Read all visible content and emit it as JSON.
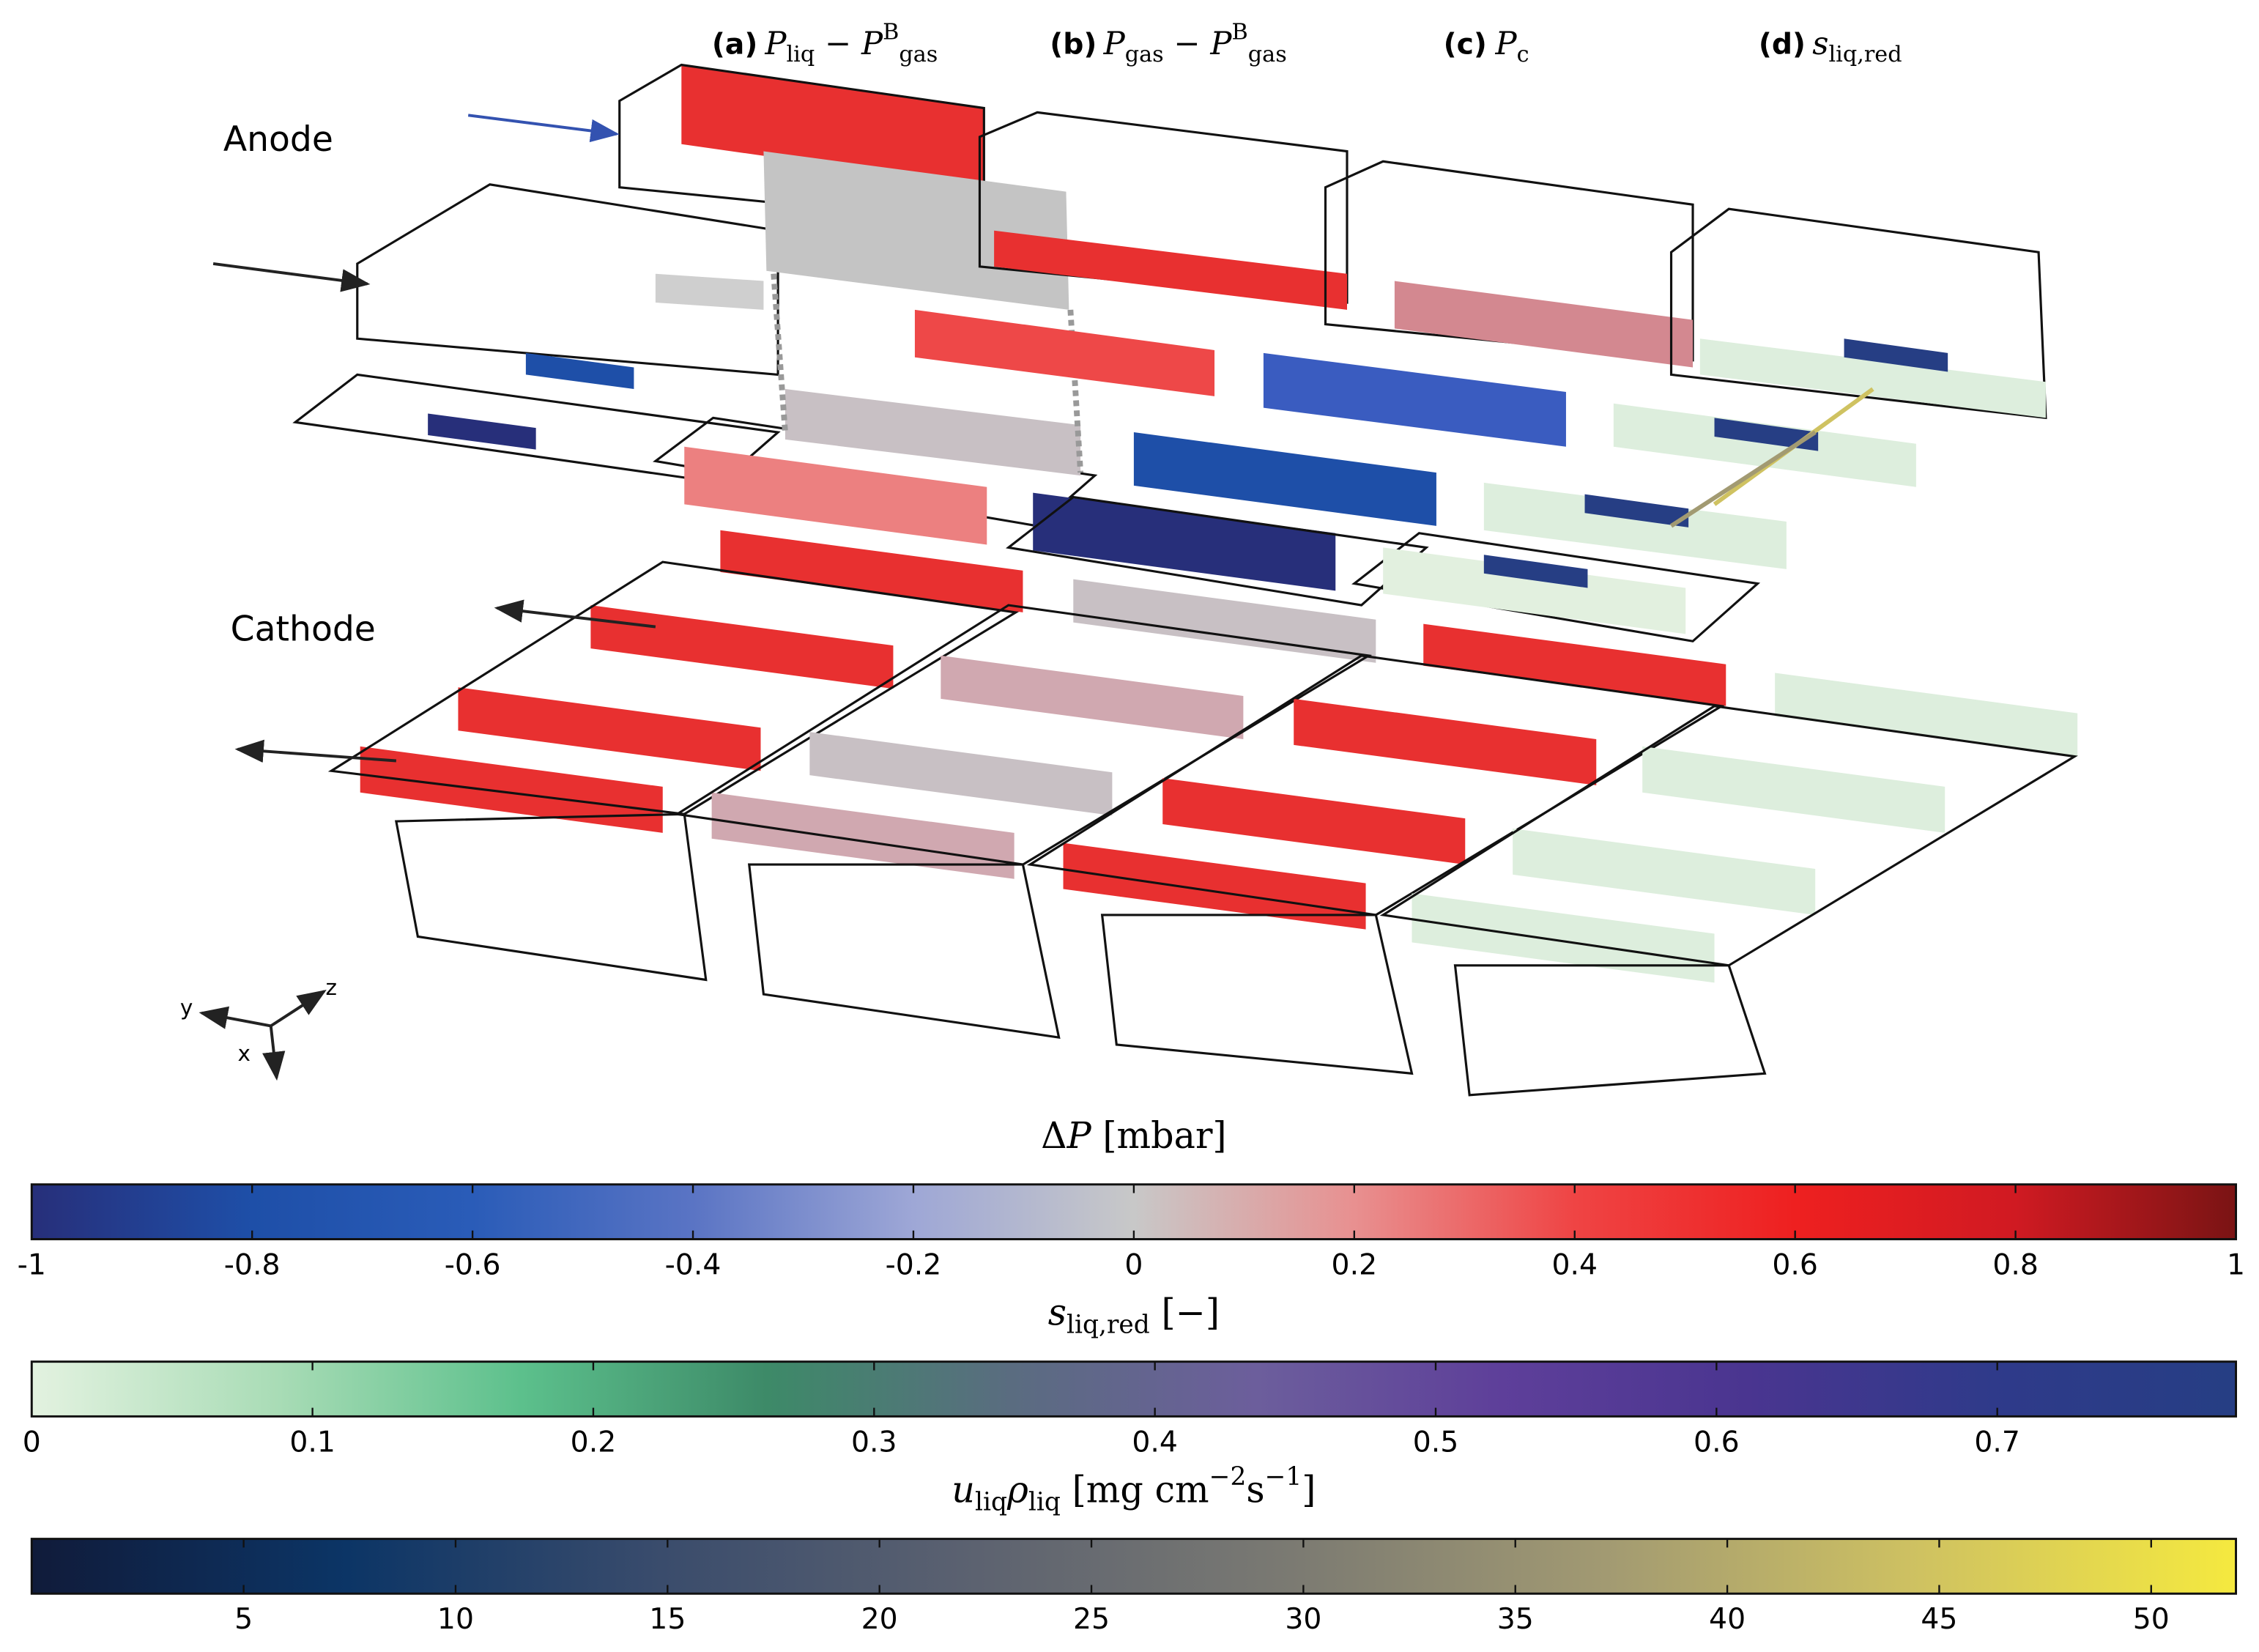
{
  "panels": [
    {
      "letter": "(a)",
      "expression": [
        {
          "t": "P",
          "s": "i"
        },
        {
          "t": "liq",
          "s": "sub"
        },
        {
          "t": " − ",
          "s": "r"
        },
        {
          "t": "P",
          "s": "i"
        },
        {
          "t": "B",
          "s": "sup"
        },
        {
          "t": "gas",
          "s": "sub"
        }
      ]
    },
    {
      "letter": "(b)",
      "expression": [
        {
          "t": "P",
          "s": "i"
        },
        {
          "t": "gas",
          "s": "sub"
        },
        {
          "t": " − ",
          "s": "r"
        },
        {
          "t": "P",
          "s": "i"
        },
        {
          "t": "B",
          "s": "sup"
        },
        {
          "t": "gas",
          "s": "sub"
        }
      ]
    },
    {
      "letter": "(c)",
      "expression": [
        {
          "t": "P",
          "s": "i"
        },
        {
          "t": "c",
          "s": "sub"
        }
      ]
    },
    {
      "letter": "(d)",
      "expression": [
        {
          "t": "s",
          "s": "i"
        },
        {
          "t": "liq,red",
          "s": "sub"
        }
      ]
    }
  ],
  "labels": {
    "anode": "Anode",
    "cathode": "Cathode",
    "axis_y": "y",
    "axis_z": "z",
    "axis_x": "x"
  },
  "colorbars": [
    {
      "title": [
        {
          "t": "Δ",
          "s": "r"
        },
        {
          "t": "P",
          "s": "i"
        },
        {
          "t": " [mbar]",
          "s": "r"
        }
      ],
      "lim": [
        -1,
        1
      ],
      "ticks": [
        -1,
        -0.8,
        -0.6,
        -0.4,
        -0.2,
        0,
        0.2,
        0.4,
        0.6,
        0.8,
        1
      ],
      "colors": [
        "#272f7a",
        "#1e4fa8",
        "#2a5cb8",
        "#5a74c4",
        "#9ea7d6",
        "#c8c8c8",
        "#e89090",
        "#ef4444",
        "#ee2020",
        "#d01a22",
        "#7a1414"
      ]
    },
    {
      "title": [
        {
          "t": "s",
          "s": "i"
        },
        {
          "t": "liq,red",
          "s": "sub"
        },
        {
          "t": " [−]",
          "s": "r"
        }
      ],
      "lim": [
        0,
        0.785
      ],
      "ticks": [
        0,
        0.1,
        0.2,
        0.3,
        0.4,
        0.5,
        0.6,
        0.7
      ],
      "colors": [
        "#e3f2e0",
        "#a9dcb6",
        "#5cc08c",
        "#3d8a68",
        "#5a6c80",
        "#6c5e9c",
        "#5e3f9a",
        "#4a3590",
        "#2f3a8a",
        "#263e84"
      ]
    },
    {
      "title": [
        {
          "t": "u",
          "s": "i"
        },
        {
          "t": "liq",
          "s": "sub"
        },
        {
          "t": "ρ",
          "s": "i"
        },
        {
          "t": "liq",
          "s": "sub"
        },
        {
          "t": " [mg cm",
          "s": "r"
        },
        {
          "t": "−2",
          "s": "sup"
        },
        {
          "t": "s",
          "s": "r"
        },
        {
          "t": "−1",
          "s": "sup"
        },
        {
          "t": "]",
          "s": "r"
        }
      ],
      "lim": [
        0,
        52
      ],
      "ticks": [
        5,
        10,
        15,
        20,
        25,
        30,
        35,
        40,
        45,
        50
      ],
      "colors": [
        "#101b3a",
        "#0c3566",
        "#3a4c6c",
        "#5c6270",
        "#7b7a72",
        "#a29a72",
        "#cfc261",
        "#f5e93f"
      ]
    }
  ]
}
